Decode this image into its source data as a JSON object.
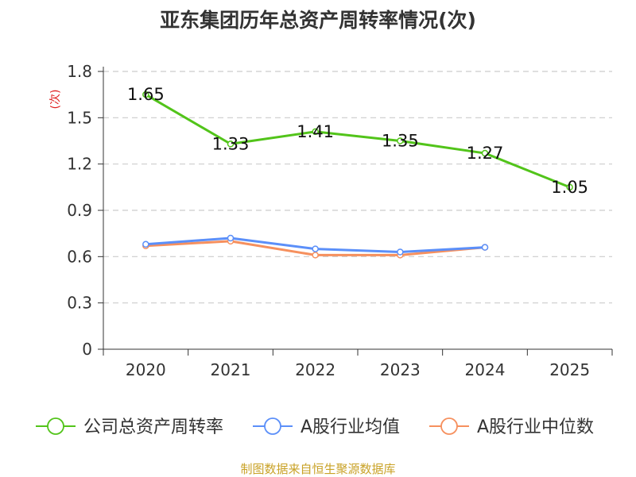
{
  "chart_data": {
    "type": "line",
    "title": "亚东集团历年总资产周转率情况(次)",
    "ylabel": "(次)",
    "xlabel": "",
    "categories": [
      "2020",
      "2021",
      "2022",
      "2023",
      "2024",
      "2025"
    ],
    "yticks": [
      "0",
      "0.3",
      "0.6",
      "0.9",
      "1.2",
      "1.5",
      "1.8"
    ],
    "ylim": [
      0,
      1.8
    ],
    "grid": true,
    "legend_position": "bottom",
    "series": [
      {
        "name": "公司总资产周转率",
        "color": "#52c41a",
        "show_labels": true,
        "values": [
          1.65,
          1.33,
          1.41,
          1.35,
          1.27,
          1.05
        ],
        "labels": [
          "1.65",
          "1.33",
          "1.41",
          "1.35",
          "1.27",
          "1.05"
        ]
      },
      {
        "name": "A股行业均值",
        "color": "#5b8ff9",
        "show_labels": false,
        "values": [
          0.68,
          0.72,
          0.65,
          0.63,
          0.66,
          null
        ]
      },
      {
        "name": "A股行业中位数",
        "color": "#f6905e",
        "show_labels": false,
        "values": [
          0.67,
          0.7,
          0.61,
          0.61,
          0.66,
          null
        ]
      }
    ]
  },
  "source": "制图数据来自恒生聚源数据库"
}
